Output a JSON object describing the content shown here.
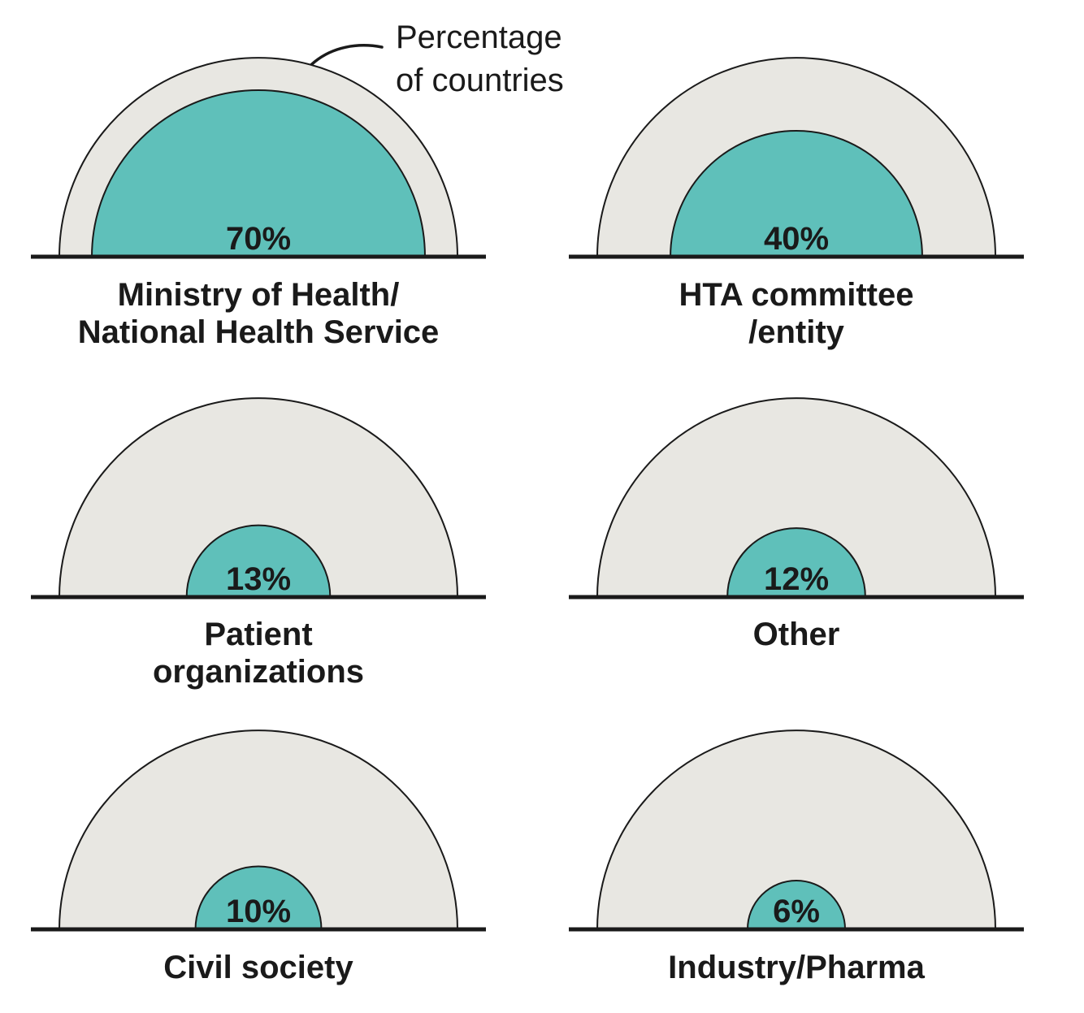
{
  "annotation": {
    "line1": "Percentage",
    "line2": "of countries"
  },
  "colors": {
    "highlight_fill": "#5fc0ba",
    "background_fill": "#e8e7e2",
    "outline": "#1a1a1a",
    "baseline": "#1a1a1a",
    "text": "#1a1a1a"
  },
  "chart_data": {
    "type": "pie",
    "subtype": "proportional-semicircle",
    "title": "",
    "annotation": "Percentage of countries",
    "note": "Each panel: inner teal semicircle area proportional to percentage of countries; outer grey semicircle = 100%",
    "legend_position": "none",
    "grid": false,
    "charts": [
      {
        "slug": "ministry-of-health",
        "label_lines": [
          "Ministry of Health/",
          "National Health Service"
        ],
        "value": 70,
        "value_label": "70%"
      },
      {
        "slug": "hta-committee",
        "label_lines": [
          "HTA committee",
          "/entity"
        ],
        "value": 40,
        "value_label": "40%"
      },
      {
        "slug": "patient-organizations",
        "label_lines": [
          "Patient",
          "organizations"
        ],
        "value": 13,
        "value_label": "13%"
      },
      {
        "slug": "other",
        "label_lines": [
          "Other"
        ],
        "value": 12,
        "value_label": "12%"
      },
      {
        "slug": "civil-society",
        "label_lines": [
          "Civil society"
        ],
        "value": 10,
        "value_label": "10%"
      },
      {
        "slug": "industry-pharma",
        "label_lines": [
          "Industry/Pharma"
        ],
        "value": 6,
        "value_label": "6%"
      }
    ]
  }
}
